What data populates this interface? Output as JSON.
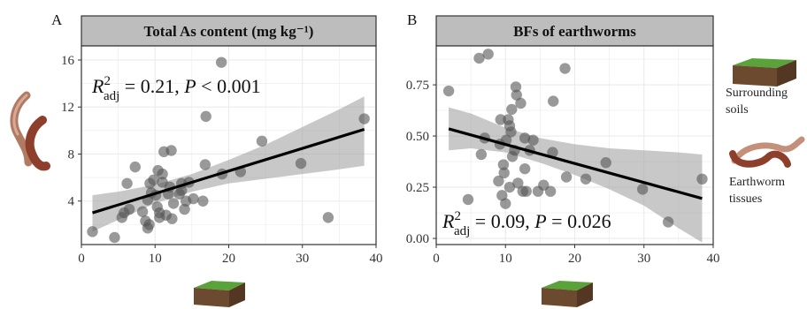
{
  "chart_data": [
    {
      "type": "scatter",
      "panel_letter": "A",
      "title": "Total As content (mg kg⁻¹)",
      "xlim": [
        0,
        40
      ],
      "ylim": [
        0.3,
        17.2
      ],
      "x_ticks": [
        0,
        10,
        20,
        30,
        40
      ],
      "y_ticks": [
        4,
        8,
        12,
        16
      ],
      "grid": true,
      "annotation": {
        "r2_symbol": "R",
        "r2_sup": "2",
        "r2_sub": "adj",
        "r2_value": " = 0.21, ",
        "p_symbol": "P",
        "p_text": " < 0.001"
      },
      "points": [
        [
          1.5,
          1.4
        ],
        [
          4.5,
          0.9
        ],
        [
          5.5,
          2.6
        ],
        [
          5.8,
          3.0
        ],
        [
          6.2,
          5.5
        ],
        [
          6.5,
          3.3
        ],
        [
          7.3,
          6.9
        ],
        [
          8.3,
          3.1
        ],
        [
          8.7,
          2.3
        ],
        [
          9.0,
          1.7
        ],
        [
          9.2,
          2.0
        ],
        [
          9.0,
          4.1
        ],
        [
          9.5,
          4.7
        ],
        [
          9.3,
          5.5
        ],
        [
          9.8,
          5.8
        ],
        [
          10.1,
          4.5
        ],
        [
          10.3,
          3.5
        ],
        [
          10.4,
          6.6
        ],
        [
          10.6,
          3.0
        ],
        [
          10.6,
          2.6
        ],
        [
          11.0,
          5.6
        ],
        [
          11.0,
          6.3
        ],
        [
          11.2,
          8.2
        ],
        [
          11.5,
          2.8
        ],
        [
          11.8,
          4.6
        ],
        [
          12.0,
          5.2
        ],
        [
          12.3,
          2.5
        ],
        [
          12.2,
          8.3
        ],
        [
          12.5,
          3.8
        ],
        [
          13.3,
          4.6
        ],
        [
          13.6,
          5.5
        ],
        [
          13.6,
          4.9
        ],
        [
          14.0,
          3.3
        ],
        [
          14.2,
          4.0
        ],
        [
          14.6,
          5.6
        ],
        [
          15.2,
          4.2
        ],
        [
          16.5,
          4.0
        ],
        [
          16.8,
          7.1
        ],
        [
          16.9,
          11.2
        ],
        [
          19.0,
          15.8
        ],
        [
          19.1,
          6.3
        ],
        [
          21.6,
          6.5
        ],
        [
          24.5,
          9.1
        ],
        [
          29.8,
          7.2
        ],
        [
          33.5,
          2.6
        ],
        [
          38.4,
          11.0
        ]
      ],
      "fit": {
        "x": [
          1.5,
          38.4
        ],
        "y": [
          3.0,
          10.1
        ]
      },
      "ci": {
        "x": [
          1.5,
          5,
          10,
          15,
          20,
          25,
          30,
          35,
          38.4
        ],
        "lower": [
          1.4,
          2.4,
          3.8,
          4.8,
          5.5,
          5.9,
          6.3,
          6.7,
          7.0
        ],
        "upper": [
          4.5,
          4.8,
          5.4,
          6.3,
          7.5,
          8.8,
          10.3,
          11.8,
          12.9
        ]
      }
    },
    {
      "type": "scatter",
      "panel_letter": "B",
      "title": "BFs of earthworms",
      "xlim": [
        0,
        40
      ],
      "ylim": [
        -0.03,
        0.94
      ],
      "x_ticks": [
        0,
        10,
        20,
        30,
        40
      ],
      "y_ticks": [
        "0.00",
        "0.25",
        "0.50",
        "0.75"
      ],
      "grid": true,
      "annotation": {
        "r2_symbol": "R",
        "r2_sup": "2",
        "r2_sub": "adj",
        "r2_value": " = 0.09, ",
        "p_symbol": "P",
        "p_text": " = 0.026"
      },
      "points": [
        [
          1.8,
          0.72
        ],
        [
          4.6,
          0.19
        ],
        [
          6.2,
          0.88
        ],
        [
          6.5,
          0.41
        ],
        [
          7.0,
          0.49
        ],
        [
          7.5,
          0.9
        ],
        [
          9.0,
          0.28
        ],
        [
          9.2,
          0.46
        ],
        [
          9.3,
          0.58
        ],
        [
          9.5,
          0.21
        ],
        [
          9.7,
          0.36
        ],
        [
          9.8,
          0.32
        ],
        [
          10.0,
          0.17
        ],
        [
          10.1,
          0.48
        ],
        [
          10.4,
          0.58
        ],
        [
          10.6,
          0.25
        ],
        [
          10.6,
          0.55
        ],
        [
          10.8,
          0.52
        ],
        [
          10.9,
          0.63
        ],
        [
          11.0,
          0.4
        ],
        [
          11.3,
          0.43
        ],
        [
          11.5,
          0.74
        ],
        [
          11.6,
          0.7
        ],
        [
          11.8,
          0.27
        ],
        [
          12.2,
          0.66
        ],
        [
          12.5,
          0.23
        ],
        [
          12.8,
          0.49
        ],
        [
          12.8,
          0.34
        ],
        [
          13.0,
          0.23
        ],
        [
          13.5,
          0.43
        ],
        [
          14.0,
          0.48
        ],
        [
          14.7,
          0.23
        ],
        [
          15.5,
          0.26
        ],
        [
          16.5,
          0.23
        ],
        [
          16.8,
          0.42
        ],
        [
          16.9,
          0.67
        ],
        [
          18.6,
          0.83
        ],
        [
          18.8,
          0.3
        ],
        [
          21.6,
          0.29
        ],
        [
          24.5,
          0.37
        ],
        [
          29.8,
          0.24
        ],
        [
          33.5,
          0.08
        ],
        [
          38.4,
          0.29
        ]
      ],
      "fit": {
        "x": [
          1.8,
          38.4
        ],
        "y": [
          0.535,
          0.195
        ]
      },
      "ci": {
        "x": [
          1.8,
          5,
          10,
          15,
          20,
          25,
          30,
          35,
          38.4
        ],
        "lower": [
          0.43,
          0.44,
          0.42,
          0.37,
          0.31,
          0.24,
          0.16,
          0.05,
          -0.02
        ],
        "upper": [
          0.64,
          0.61,
          0.54,
          0.49,
          0.46,
          0.44,
          0.43,
          0.42,
          0.41
        ]
      }
    }
  ],
  "legend": {
    "soil_label_1": "Surrounding",
    "soil_label_2": "soils",
    "worm_label_1": "Earthworm",
    "worm_label_2": "tissues"
  }
}
